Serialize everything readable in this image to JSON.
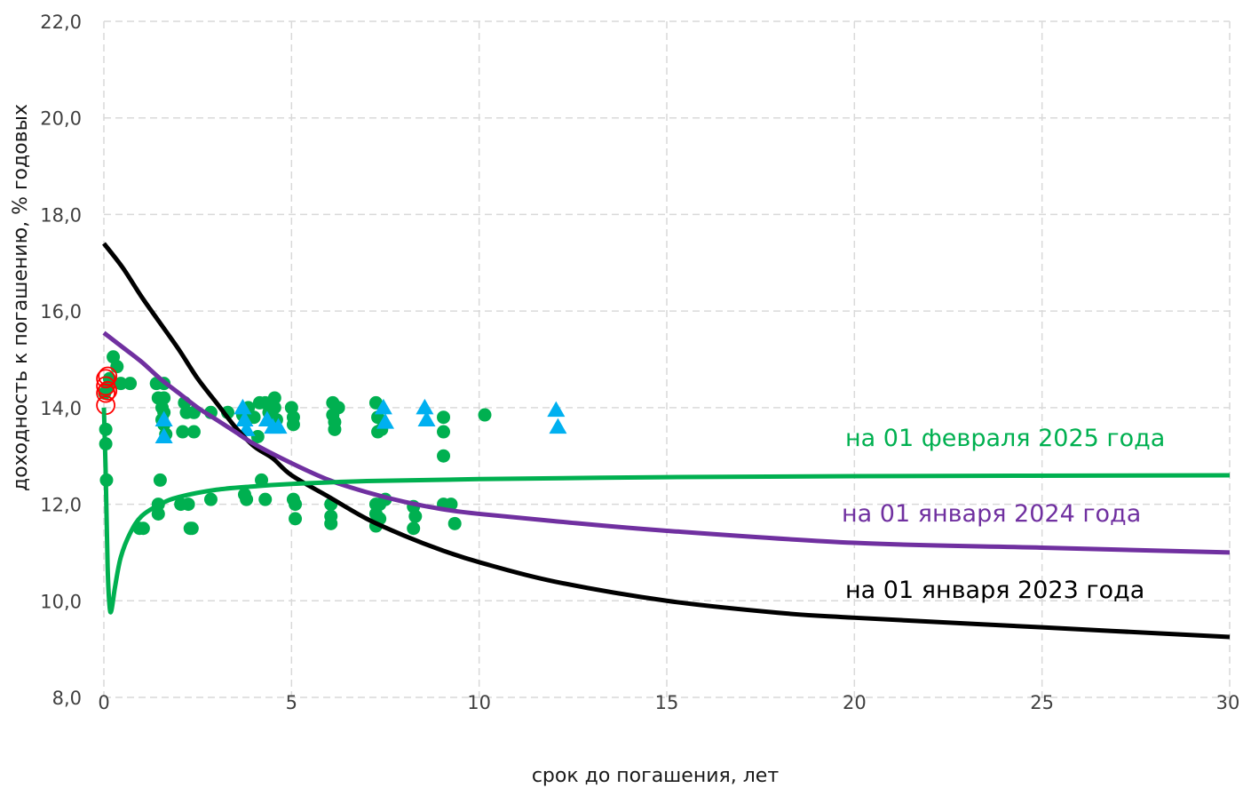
{
  "chart_data": {
    "type": "scatter",
    "xlabel": "срок до погашения, лет",
    "ylabel": "доходность к погашению, % годовых",
    "xlim": [
      0,
      30
    ],
    "ylim": [
      8,
      22
    ],
    "x_ticks": [
      "0",
      "5",
      "10",
      "15",
      "20",
      "25",
      "30"
    ],
    "y_ticks": [
      "8,0",
      "10,0",
      "12,0",
      "14,0",
      "16,0",
      "18,0",
      "20,0",
      "22,0"
    ],
    "grid": true,
    "grid_style": "dashed",
    "colors": {
      "green": "#00b050",
      "purple": "#7030a0",
      "black": "#000000",
      "blue": "#00b0f0",
      "red": "#ff0000",
      "grid": "#d9d9d9"
    },
    "curve_labels": [
      {
        "text": "на 01 февраля 2025 года",
        "color": "#00b050"
      },
      {
        "text": "на 01 января 2024 года",
        "color": "#7030a0"
      },
      {
        "text": "на 01 января 2023 года",
        "color": "#000000"
      }
    ],
    "curves": [
      {
        "color": "#000000",
        "points": [
          [
            0.0,
            17.4
          ],
          [
            0.5,
            16.9
          ],
          [
            1,
            16.3
          ],
          [
            1.5,
            15.75
          ],
          [
            2,
            15.2
          ],
          [
            2.5,
            14.6
          ],
          [
            3,
            14.1
          ],
          [
            3.5,
            13.6
          ],
          [
            4,
            13.2
          ],
          [
            4.5,
            12.95
          ],
          [
            5,
            12.6
          ],
          [
            6,
            12.15
          ],
          [
            7,
            11.7
          ],
          [
            8,
            11.35
          ],
          [
            9,
            11.05
          ],
          [
            10,
            10.8
          ],
          [
            12,
            10.4
          ],
          [
            15,
            10.0
          ],
          [
            18,
            9.75
          ],
          [
            20,
            9.65
          ],
          [
            25,
            9.45
          ],
          [
            30,
            9.25
          ]
        ]
      },
      {
        "color": "#7030a0",
        "points": [
          [
            0.0,
            15.55
          ],
          [
            0.5,
            15.25
          ],
          [
            1,
            14.95
          ],
          [
            1.5,
            14.6
          ],
          [
            2,
            14.3
          ],
          [
            2.5,
            14.0
          ],
          [
            3,
            13.75
          ],
          [
            3.5,
            13.5
          ],
          [
            4,
            13.25
          ],
          [
            5,
            12.85
          ],
          [
            6,
            12.5
          ],
          [
            7,
            12.25
          ],
          [
            8,
            12.05
          ],
          [
            9,
            11.9
          ],
          [
            10,
            11.8
          ],
          [
            12,
            11.65
          ],
          [
            15,
            11.45
          ],
          [
            20,
            11.2
          ],
          [
            25,
            11.1
          ],
          [
            30,
            11.0
          ]
        ]
      },
      {
        "color": "#00b050",
        "points": [
          [
            0.0,
            14.0
          ],
          [
            0.05,
            12.6
          ],
          [
            0.1,
            10.7
          ],
          [
            0.15,
            9.9
          ],
          [
            0.2,
            9.8
          ],
          [
            0.3,
            10.3
          ],
          [
            0.45,
            10.9
          ],
          [
            0.7,
            11.4
          ],
          [
            1,
            11.75
          ],
          [
            1.5,
            12.0
          ],
          [
            2,
            12.15
          ],
          [
            3,
            12.3
          ],
          [
            4,
            12.37
          ],
          [
            5,
            12.42
          ],
          [
            7,
            12.48
          ],
          [
            10,
            12.52
          ],
          [
            15,
            12.56
          ],
          [
            20,
            12.58
          ],
          [
            30,
            12.6
          ]
        ]
      }
    ],
    "scatter_green": [
      [
        0.02,
        14.3
      ],
      [
        0.05,
        13.55
      ],
      [
        0.05,
        13.25
      ],
      [
        0.07,
        12.5
      ],
      [
        0.1,
        14.4
      ],
      [
        0.15,
        14.6
      ],
      [
        0.25,
        15.05
      ],
      [
        0.35,
        14.85
      ],
      [
        0.45,
        14.5
      ],
      [
        0.7,
        14.5
      ],
      [
        0.95,
        11.5
      ],
      [
        1.05,
        11.5
      ],
      [
        1.4,
        14.5
      ],
      [
        1.45,
        14.2
      ],
      [
        1.45,
        12.0
      ],
      [
        1.45,
        11.8
      ],
      [
        1.5,
        12.5
      ],
      [
        1.55,
        14.0
      ],
      [
        1.55,
        13.75
      ],
      [
        1.6,
        14.5
      ],
      [
        1.6,
        14.2
      ],
      [
        1.6,
        13.9
      ],
      [
        1.6,
        13.65
      ],
      [
        1.65,
        13.45
      ],
      [
        2.05,
        12.0
      ],
      [
        2.1,
        13.5
      ],
      [
        2.15,
        14.1
      ],
      [
        2.2,
        13.9
      ],
      [
        2.25,
        12.0
      ],
      [
        2.3,
        11.5
      ],
      [
        2.35,
        11.5
      ],
      [
        2.4,
        13.9
      ],
      [
        2.4,
        13.5
      ],
      [
        2.85,
        13.9
      ],
      [
        2.85,
        12.1
      ],
      [
        3.3,
        13.9
      ],
      [
        3.7,
        13.85
      ],
      [
        3.75,
        12.2
      ],
      [
        3.8,
        12.1
      ],
      [
        3.85,
        14.0
      ],
      [
        3.9,
        13.8
      ],
      [
        4.0,
        13.8
      ],
      [
        4.1,
        13.4
      ],
      [
        4.15,
        14.1
      ],
      [
        4.2,
        12.5
      ],
      [
        4.3,
        12.1
      ],
      [
        4.3,
        14.1
      ],
      [
        4.4,
        13.9
      ],
      [
        4.5,
        13.75
      ],
      [
        4.55,
        14.2
      ],
      [
        4.55,
        14.0
      ],
      [
        4.6,
        13.75
      ],
      [
        5.0,
        14.0
      ],
      [
        5.05,
        13.8
      ],
      [
        5.05,
        13.65
      ],
      [
        5.05,
        12.1
      ],
      [
        5.1,
        12.0
      ],
      [
        5.1,
        11.7
      ],
      [
        6.05,
        12.0
      ],
      [
        6.05,
        11.75
      ],
      [
        6.05,
        11.6
      ],
      [
        6.1,
        14.1
      ],
      [
        6.1,
        13.85
      ],
      [
        6.15,
        13.7
      ],
      [
        6.15,
        13.55
      ],
      [
        6.25,
        14.0
      ],
      [
        7.25,
        14.1
      ],
      [
        7.25,
        12.0
      ],
      [
        7.25,
        11.8
      ],
      [
        7.25,
        11.55
      ],
      [
        7.3,
        13.8
      ],
      [
        7.3,
        13.5
      ],
      [
        7.35,
        12.0
      ],
      [
        7.35,
        11.7
      ],
      [
        7.4,
        13.55
      ],
      [
        7.5,
        12.1
      ],
      [
        8.25,
        11.95
      ],
      [
        8.25,
        11.5
      ],
      [
        8.3,
        11.75
      ],
      [
        9.05,
        13.8
      ],
      [
        9.05,
        13.5
      ],
      [
        9.05,
        13.0
      ],
      [
        9.05,
        12.0
      ],
      [
        9.25,
        12.0
      ],
      [
        9.35,
        11.6
      ],
      [
        10.15,
        13.85
      ]
    ],
    "scatter_blue": [
      [
        1.6,
        13.75
      ],
      [
        1.6,
        13.4
      ],
      [
        3.7,
        14.0
      ],
      [
        3.75,
        13.75
      ],
      [
        3.8,
        13.55
      ],
      [
        4.35,
        13.75
      ],
      [
        4.5,
        13.6
      ],
      [
        4.65,
        13.6
      ],
      [
        7.45,
        14.0
      ],
      [
        7.5,
        13.7
      ],
      [
        8.55,
        14.0
      ],
      [
        8.6,
        13.75
      ],
      [
        12.05,
        13.95
      ],
      [
        12.1,
        13.6
      ]
    ],
    "scatter_red_rings": [
      [
        0.05,
        14.6
      ],
      [
        0.05,
        14.45
      ],
      [
        0.05,
        14.3
      ],
      [
        0.05,
        14.05
      ],
      [
        0.1,
        14.65
      ],
      [
        0.1,
        14.35
      ]
    ]
  }
}
